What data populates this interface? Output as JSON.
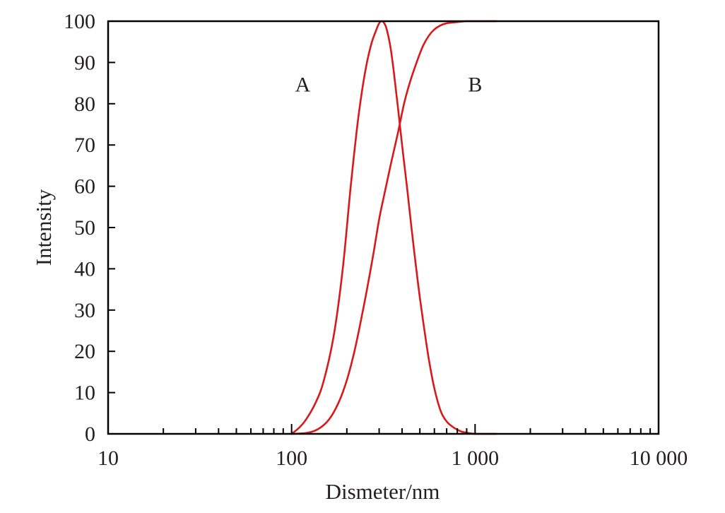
{
  "chart_data": {
    "type": "line",
    "title": "",
    "xlabel": "Dismeter/nm",
    "ylabel": "Intensity",
    "xscale": "log",
    "xlim": [
      10,
      10000
    ],
    "ylim": [
      0,
      100
    ],
    "xticks": [
      {
        "value": 10,
        "label": "10"
      },
      {
        "value": 100,
        "label": "100"
      },
      {
        "value": 1000,
        "label": "1 000"
      },
      {
        "value": 10000,
        "label": "10 000"
      }
    ],
    "yticks": [
      0,
      10,
      20,
      30,
      40,
      50,
      60,
      70,
      80,
      90,
      100
    ],
    "grid": false,
    "line_color": "#d7191c",
    "series": [
      {
        "name": "A",
        "x": [
          100,
          110,
          120,
          135,
          150,
          170,
          190,
          210,
          230,
          250,
          270,
          290,
          300,
          310,
          320,
          330,
          345,
          360,
          380,
          400,
          425,
          450,
          475,
          500,
          530,
          560,
          600,
          650,
          700,
          750,
          800,
          850,
          900,
          950,
          1000,
          1100,
          1200,
          1300
        ],
        "y": [
          0,
          1.5,
          3.5,
          7.5,
          13,
          24,
          40,
          60,
          76,
          87,
          94,
          98,
          99.5,
          100,
          99.5,
          98,
          94,
          88,
          79,
          70,
          60,
          50,
          41,
          33,
          25,
          18,
          11,
          5.5,
          3,
          1.8,
          1,
          0.5,
          0.3,
          0.1,
          0,
          0,
          0,
          0
        ]
      },
      {
        "name": "B",
        "x": [
          100,
          120,
          140,
          160,
          180,
          200,
          220,
          240,
          260,
          280,
          300,
          320,
          350,
          380,
          410,
          440,
          480,
          520,
          560,
          600,
          650,
          700,
          800,
          900,
          1000,
          1150,
          1300
        ],
        "y": [
          0,
          0.2,
          1.2,
          3.5,
          7.5,
          13,
          20,
          28,
          36,
          44,
          52,
          58,
          66,
          73,
          80,
          85,
          90,
          94,
          96.5,
          98,
          99,
          99.5,
          99.8,
          100,
          100,
          100,
          100
        ]
      }
    ],
    "annotations": [
      {
        "text": "A",
        "x": 115,
        "y": 85
      },
      {
        "text": "B",
        "x": 1000,
        "y": 85
      }
    ]
  }
}
